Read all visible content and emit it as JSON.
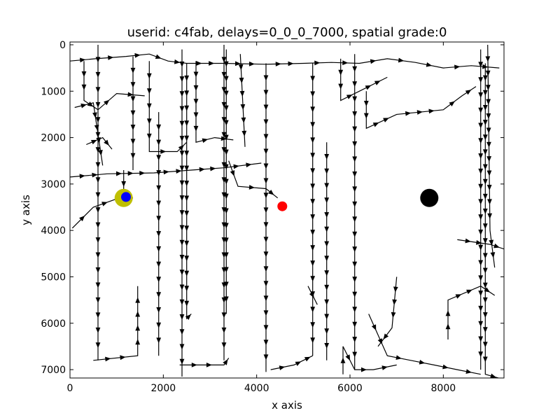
{
  "chart_data": {
    "type": "scatter",
    "title": "userid: c4fab, delays=0_0_0_7000, spatial grade:0",
    "xlabel": "x axis",
    "ylabel": "y axis",
    "xlim": [
      0,
      9300
    ],
    "ylim": [
      -60,
      7180
    ],
    "y_inverted": true,
    "grid": false,
    "x_ticks": [
      {
        "value": 0,
        "label": "0"
      },
      {
        "value": 2000,
        "label": "2000"
      },
      {
        "value": 4000,
        "label": "4000"
      },
      {
        "value": 6000,
        "label": "6000"
      },
      {
        "value": 8000,
        "label": "8000"
      }
    ],
    "y_ticks": [
      {
        "value": 0,
        "label": "0"
      },
      {
        "value": 1000,
        "label": "1000"
      },
      {
        "value": 2000,
        "label": "2000"
      },
      {
        "value": 3000,
        "label": "3000"
      },
      {
        "value": 4000,
        "label": "4000"
      },
      {
        "value": 5000,
        "label": "5000"
      },
      {
        "value": 6000,
        "label": "6000"
      },
      {
        "value": 7000,
        "label": "7000"
      }
    ],
    "trajectory_color": "#000000",
    "trajectory_segments": [
      [
        [
          0,
          350
        ],
        [
          550,
          300
        ],
        [
          1200,
          250
        ],
        [
          1700,
          200
        ],
        [
          2100,
          350
        ],
        [
          2500,
          400
        ],
        [
          3300,
          400
        ],
        [
          4200,
          420
        ],
        [
          5000,
          400
        ],
        [
          5600,
          380
        ],
        [
          6200,
          400
        ],
        [
          6800,
          300
        ],
        [
          7400,
          380
        ],
        [
          8000,
          500
        ],
        [
          8600,
          450
        ],
        [
          9200,
          500
        ]
      ],
      [
        [
          0,
          2850
        ],
        [
          800,
          2780
        ],
        [
          1800,
          2760
        ],
        [
          2600,
          2700
        ],
        [
          3300,
          2650
        ],
        [
          4100,
          2550
        ]
      ],
      [
        [
          50,
          3950
        ],
        [
          500,
          3500
        ],
        [
          1000,
          3320
        ],
        [
          1350,
          3300
        ]
      ],
      [
        [
          500,
          6800
        ],
        [
          1450,
          6700
        ],
        [
          1450,
          5200
        ]
      ],
      [
        [
          600,
          0
        ],
        [
          600,
          6800
        ]
      ],
      [
        [
          300,
          350
        ],
        [
          300,
          1200
        ],
        [
          600,
          1400
        ],
        [
          1000,
          1050
        ],
        [
          1600,
          1100
        ]
      ],
      [
        [
          100,
          1350
        ],
        [
          500,
          1250
        ],
        [
          700,
          2600
        ]
      ],
      [
        [
          350,
          2150
        ],
        [
          700,
          2000
        ],
        [
          900,
          2250
        ]
      ],
      [
        [
          1150,
          2700
        ],
        [
          1150,
          3300
        ]
      ],
      [
        [
          1700,
          350
        ],
        [
          1700,
          2300
        ],
        [
          2300,
          2300
        ],
        [
          2500,
          2100
        ]
      ],
      [
        [
          1350,
          250
        ],
        [
          1350,
          2700
        ]
      ],
      [
        [
          1900,
          1450
        ],
        [
          1900,
          6700
        ]
      ],
      [
        [
          2400,
          100
        ],
        [
          2400,
          7150
        ]
      ],
      [
        [
          2500,
          400
        ],
        [
          2500,
          5900
        ],
        [
          2600,
          5800
        ]
      ],
      [
        [
          2700,
          350
        ],
        [
          2700,
          2100
        ],
        [
          3100,
          2000
        ],
        [
          3500,
          2050
        ]
      ],
      [
        [
          2350,
          6900
        ],
        [
          3300,
          6900
        ],
        [
          3400,
          6750
        ]
      ],
      [
        [
          3300,
          0
        ],
        [
          3300,
          6800
        ]
      ],
      [
        [
          3350,
          100
        ],
        [
          3350,
          5800
        ]
      ],
      [
        [
          3400,
          2500
        ],
        [
          3600,
          3050
        ],
        [
          4200,
          3100
        ],
        [
          4450,
          3300
        ]
      ],
      [
        [
          3650,
          200
        ],
        [
          3750,
          2200
        ]
      ],
      [
        [
          4200,
          400
        ],
        [
          4200,
          7050
        ]
      ],
      [
        [
          4300,
          7000
        ],
        [
          4800,
          6900
        ],
        [
          5000,
          6800
        ],
        [
          5200,
          6700
        ]
      ],
      [
        [
          5200,
          400
        ],
        [
          5200,
          6700
        ]
      ],
      [
        [
          5100,
          5200
        ],
        [
          5300,
          5600
        ]
      ],
      [
        [
          5500,
          2100
        ],
        [
          5500,
          6800
        ]
      ],
      [
        [
          5800,
          300
        ],
        [
          5800,
          1200
        ],
        [
          6200,
          1000
        ],
        [
          6800,
          700
        ]
      ],
      [
        [
          5850,
          7100
        ],
        [
          5850,
          6500
        ],
        [
          6100,
          7000
        ]
      ],
      [
        [
          6100,
          200
        ],
        [
          6100,
          7000
        ],
        [
          6500,
          7000
        ],
        [
          7000,
          6900
        ]
      ],
      [
        [
          6350,
          1000
        ],
        [
          6350,
          1800
        ],
        [
          7000,
          1500
        ],
        [
          8000,
          1400
        ],
        [
          8400,
          1100
        ],
        [
          8700,
          900
        ]
      ],
      [
        [
          7000,
          5000
        ],
        [
          6900,
          6100
        ],
        [
          6600,
          6500
        ]
      ],
      [
        [
          6400,
          5800
        ],
        [
          6800,
          6700
        ],
        [
          7300,
          6800
        ],
        [
          7800,
          6900
        ],
        [
          8300,
          7000
        ],
        [
          8800,
          7100
        ]
      ],
      [
        [
          8100,
          6350
        ],
        [
          8100,
          5500
        ],
        [
          8800,
          5200
        ],
        [
          9100,
          5400
        ]
      ],
      [
        [
          8300,
          4200
        ],
        [
          9000,
          4300
        ],
        [
          9300,
          4400
        ]
      ],
      [
        [
          8800,
          100
        ],
        [
          8800,
          7000
        ]
      ],
      [
        [
          8900,
          400
        ],
        [
          8900,
          7100
        ],
        [
          9250,
          7200
        ]
      ],
      [
        [
          8950,
          0
        ],
        [
          9000,
          4000
        ],
        [
          9100,
          4800
        ]
      ]
    ],
    "markers": [
      {
        "name": "yellow-marker",
        "x": 1150,
        "y": 3300,
        "color": "#bfbf00",
        "radius": 13
      },
      {
        "name": "blue-marker",
        "x": 1200,
        "y": 3280,
        "color": "#0000ff",
        "radius": 7
      },
      {
        "name": "red-marker",
        "x": 4550,
        "y": 3480,
        "color": "#ff0000",
        "radius": 7
      },
      {
        "name": "black-marker",
        "x": 7700,
        "y": 3300,
        "color": "#000000",
        "radius": 13
      }
    ]
  }
}
